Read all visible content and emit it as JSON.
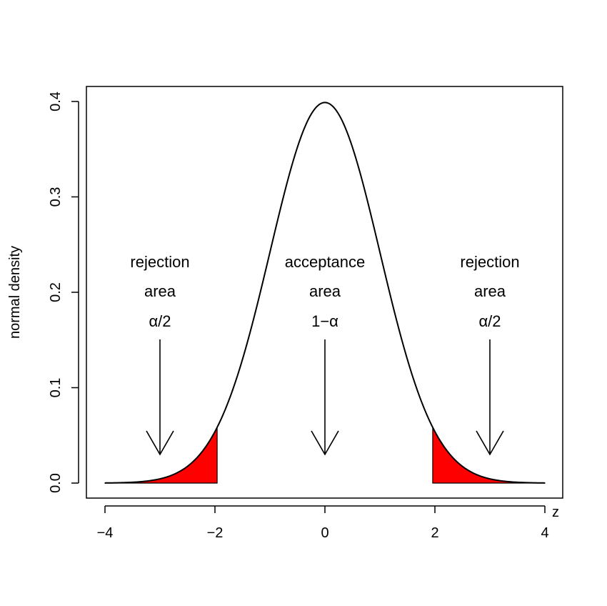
{
  "chart_data": {
    "type": "area",
    "distribution": "standard normal",
    "xlabel": "z",
    "ylabel": "normal density",
    "xlim": [
      -4,
      4
    ],
    "ylim": [
      0,
      0.4
    ],
    "grid": false,
    "x_ticks": [
      {
        "value": -4,
        "label": "−4"
      },
      {
        "value": -2,
        "label": "−2"
      },
      {
        "value": 0,
        "label": "0"
      },
      {
        "value": 2,
        "label": "2"
      },
      {
        "value": 4,
        "label": "4"
      }
    ],
    "y_ticks": [
      {
        "value": 0.0,
        "label": "0.0"
      },
      {
        "value": 0.1,
        "label": "0.1"
      },
      {
        "value": 0.2,
        "label": "0.2"
      },
      {
        "value": 0.3,
        "label": "0.3"
      },
      {
        "value": 0.4,
        "label": "0.4"
      }
    ],
    "shaded_regions": [
      {
        "from": -4,
        "to": -1.96,
        "color": "#ff0000"
      },
      {
        "from": 1.96,
        "to": 4,
        "color": "#ff0000"
      }
    ],
    "annotations": [
      {
        "lines": [
          "rejection",
          "area",
          "α/2"
        ],
        "x": -3,
        "arrow_to_y": 0.03
      },
      {
        "lines": [
          "acceptance",
          "area",
          "1−α"
        ],
        "x": 0,
        "arrow_to_y": 0.03
      },
      {
        "lines": [
          "rejection",
          "area",
          "α/2"
        ],
        "x": 3,
        "arrow_to_y": 0.03
      }
    ]
  }
}
